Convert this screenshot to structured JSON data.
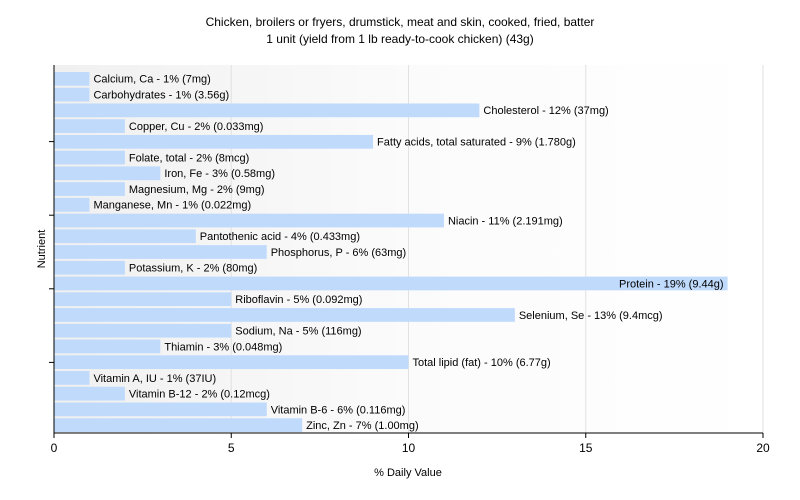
{
  "chart_data": {
    "type": "bar",
    "orientation": "horizontal",
    "title": "Chicken, broilers or fryers, drumstick, meat and skin, cooked, fried, batter",
    "subtitle": "1 unit (yield from 1 lb ready-to-cook chicken) (43g)",
    "xlabel": "% Daily Value",
    "ylabel": "Nutrient",
    "xlim": [
      0,
      20
    ],
    "xticks": [
      "0",
      "5",
      "10",
      "15",
      "20"
    ],
    "grid": true,
    "bar_color": "#c0dafc",
    "categories": [
      "Calcium, Ca",
      "Carbohydrates",
      "Cholesterol",
      "Copper, Cu",
      "Fatty acids, total saturated",
      "Folate, total",
      "Iron, Fe",
      "Magnesium, Mg",
      "Manganese, Mn",
      "Niacin",
      "Pantothenic acid",
      "Phosphorus, P",
      "Potassium, K",
      "Protein",
      "Riboflavin",
      "Selenium, Se",
      "Sodium, Na",
      "Thiamin",
      "Total lipid (fat)",
      "Vitamin A, IU",
      "Vitamin B-12",
      "Vitamin B-6",
      "Zinc, Zn"
    ],
    "values": [
      1,
      1,
      12,
      2,
      9,
      2,
      3,
      2,
      1,
      11,
      4,
      6,
      2,
      19,
      5,
      13,
      5,
      3,
      10,
      1,
      2,
      6,
      7
    ],
    "labels": [
      "Calcium, Ca - 1% (7mg)",
      "Carbohydrates - 1% (3.56g)",
      "Cholesterol - 12% (37mg)",
      "Copper, Cu - 2% (0.033mg)",
      "Fatty acids, total saturated - 9% (1.780g)",
      "Folate, total - 2% (8mcg)",
      "Iron, Fe - 3% (0.58mg)",
      "Magnesium, Mg - 2% (9mg)",
      "Manganese, Mn - 1% (0.022mg)",
      "Niacin - 11% (2.191mg)",
      "Pantothenic acid - 4% (0.433mg)",
      "Phosphorus, P - 6% (63mg)",
      "Potassium, K - 2% (80mg)",
      "Protein - 19% (9.44g)",
      "Riboflavin - 5% (0.092mg)",
      "Selenium, Se - 13% (9.4mcg)",
      "Sodium, Na - 5% (116mg)",
      "Thiamin - 3% (0.048mg)",
      "Total lipid (fat) - 10% (6.77g)",
      "Vitamin A, IU - 1% (37IU)",
      "Vitamin B-12 - 2% (0.12mcg)",
      "Vitamin B-6 - 6% (0.116mg)",
      "Zinc, Zn - 7% (1.00mg)"
    ]
  }
}
